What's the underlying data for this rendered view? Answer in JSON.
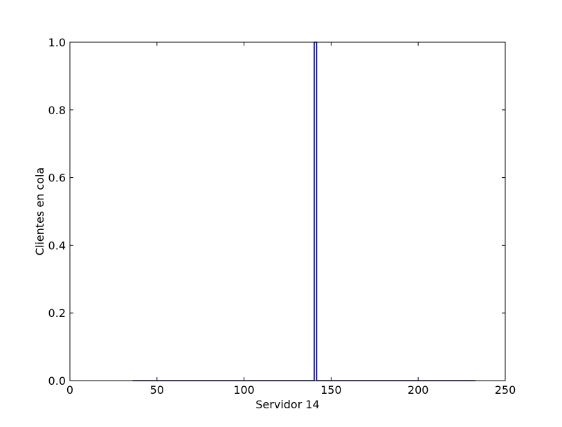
{
  "chart_data": {
    "type": "line",
    "title": "",
    "xlabel": "Servidor 14",
    "ylabel": "Clientes en cola",
    "xlim": [
      0,
      250
    ],
    "ylim": [
      0.0,
      1.0
    ],
    "x_ticks": [
      0,
      50,
      100,
      150,
      200,
      250
    ],
    "x_tick_labels": [
      "0",
      "50",
      "100",
      "150",
      "200",
      "250"
    ],
    "y_ticks": [
      0.0,
      0.2,
      0.4,
      0.6,
      0.8,
      1.0
    ],
    "y_tick_labels": [
      "0.0",
      "0.2",
      "0.4",
      "0.6",
      "0.8",
      "1.0"
    ],
    "grid": false,
    "legend": "none",
    "series": [
      {
        "color": "#0000aa",
        "x": [
          36,
          140.3,
          140.3,
          141.7,
          141.7,
          233
        ],
        "y": [
          0,
          0,
          1,
          1,
          0,
          0
        ]
      }
    ]
  }
}
